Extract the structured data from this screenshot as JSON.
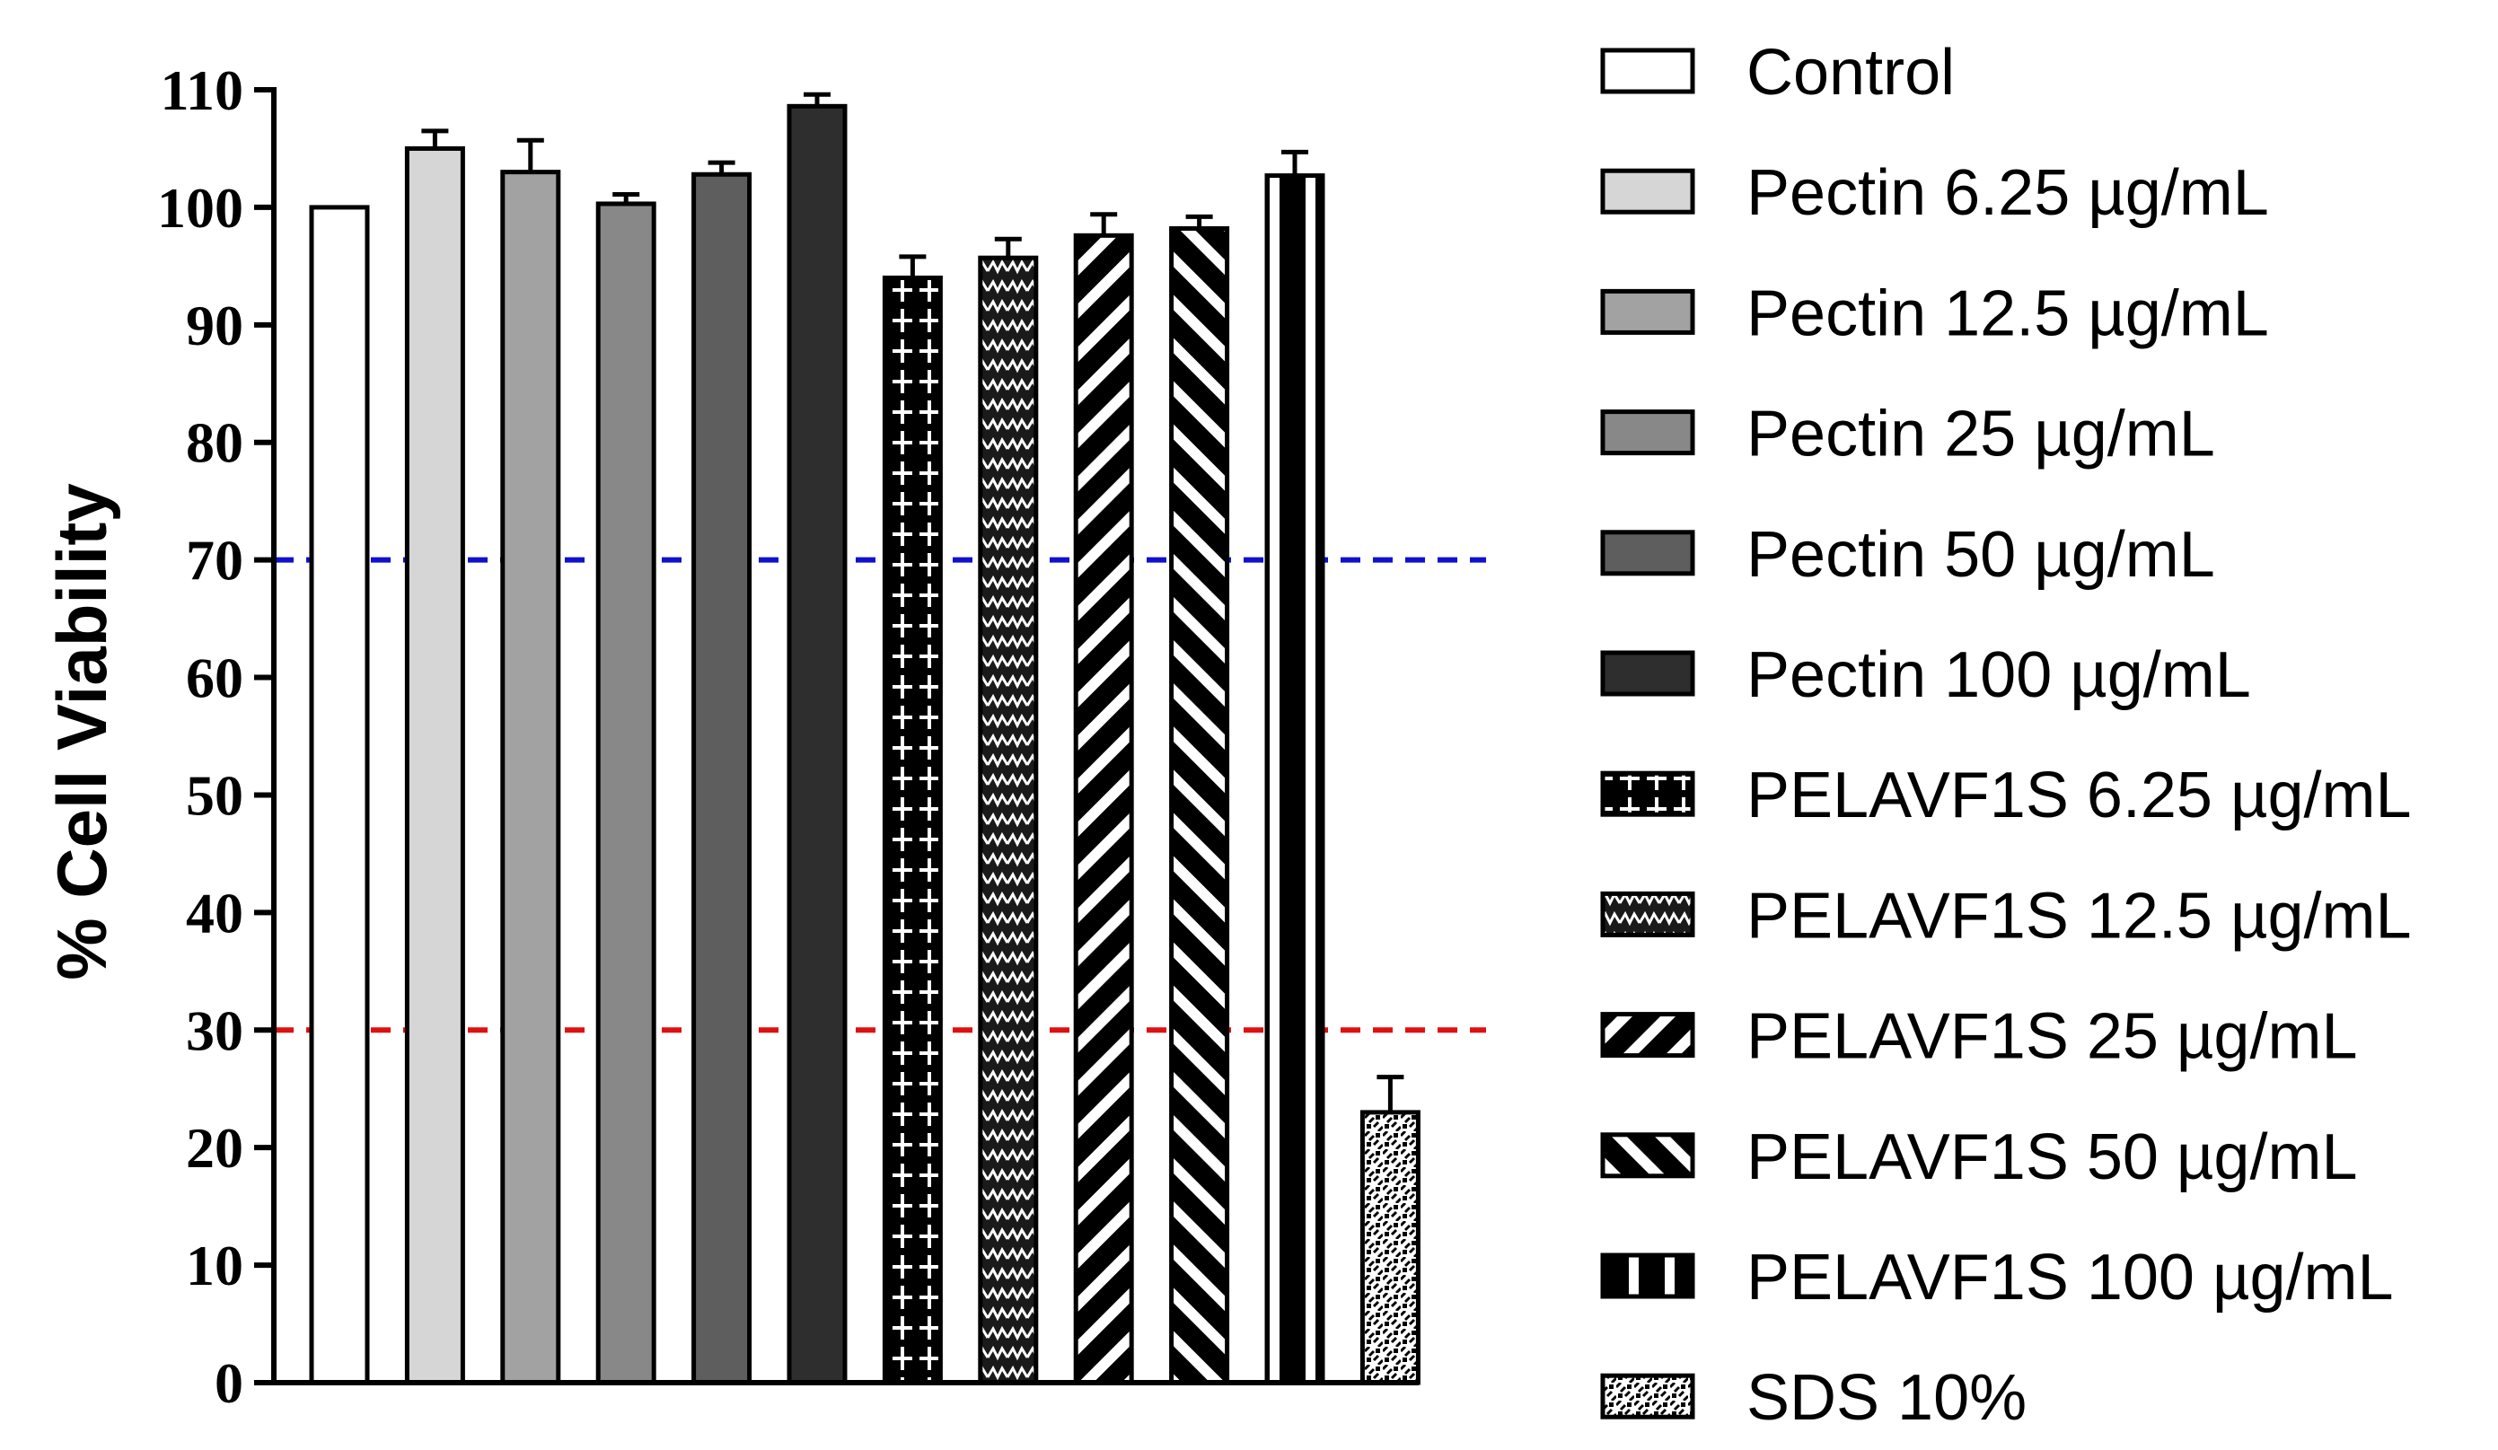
{
  "chart_data": {
    "type": "bar",
    "title": "",
    "xlabel": "",
    "ylabel": "% Cell Viability",
    "ylim": [
      0,
      110
    ],
    "yticks": [
      0,
      10,
      20,
      30,
      40,
      50,
      60,
      70,
      80,
      90,
      100,
      110
    ],
    "categories": [
      "Control",
      "Pectin 6.25 µg/mL",
      "Pectin 12.5 µg/mL",
      "Pectin 25 µg/mL",
      "Pectin 50 µg/mL",
      "Pectin 100 µg/mL",
      "PELAVF1S 6.25 µg/mL",
      "PELAVF1S 12.5 µg/mL",
      "PELAVF1S 25 µg/mL",
      "PELAVF1S 50 µg/mL",
      "PELAVF1S 100 µg/mL",
      "SDS 10%"
    ],
    "values": [
      100,
      105,
      103,
      100.3,
      102.8,
      108.6,
      94,
      95.7,
      97.6,
      98.2,
      102.7,
      23
    ],
    "errors": [
      0,
      1.5,
      2.7,
      0.8,
      1.0,
      1.0,
      1.8,
      1.6,
      1.8,
      1.0,
      2.0,
      3.0
    ],
    "patterns": [
      "white",
      "light",
      "midlight",
      "mid",
      "middark",
      "dark",
      "plus",
      "zigzag",
      "diag-back",
      "diag-fwd",
      "vbars",
      "sds"
    ],
    "reference_lines": [
      {
        "value": 70,
        "color": "#1010d0",
        "style": "dashed"
      },
      {
        "value": 30,
        "color": "#e01010",
        "style": "dashed"
      }
    ],
    "legend_position": "right"
  },
  "colors": {
    "axis": "#000000",
    "white": "#ffffff",
    "light": "#d6d6d6",
    "midlight": "#a2a2a2",
    "mid": "#888888",
    "middark": "#5e5e5e",
    "dark": "#2e2e2e"
  }
}
